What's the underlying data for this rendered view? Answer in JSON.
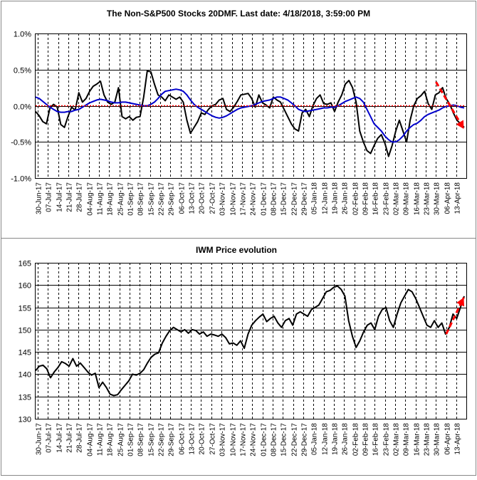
{
  "chart_data": [
    {
      "type": "line",
      "title": "The Non-S&P500 Stocks 20DMF. Last date: 4/18/2018, 3:59:00 PM",
      "xlabel": "",
      "ylabel": "",
      "ylim": [
        -1.0,
        1.0
      ],
      "y_ticks": [
        "1.0%",
        "0.5%",
        "0.0%",
        "-0.5%",
        "-1.0%"
      ],
      "y_tick_values": [
        1.0,
        0.5,
        0.0,
        -0.5,
        -1.0
      ],
      "grid": true,
      "x_tick_labels": [
        "30-Jun-17",
        "07-Jul-17",
        "14-Jul-17",
        "21-Jul-17",
        "28-Jul-17",
        "04-Aug-17",
        "11-Aug-17",
        "18-Aug-17",
        "25-Aug-17",
        "01-Sep-17",
        "08-Sep-17",
        "15-Sep-17",
        "22-Sep-17",
        "29-Sep-17",
        "06-Oct-17",
        "13-Oct-17",
        "20-Oct-17",
        "27-Oct-17",
        "03-Nov-17",
        "10-Nov-17",
        "17-Nov-17",
        "24-Nov-17",
        "01-Dec-17",
        "08-Dec-17",
        "15-Dec-17",
        "22-Dec-17",
        "29-Dec-17",
        "05-Jan-18",
        "12-Jan-18",
        "19-Jan-18",
        "26-Jan-18",
        "02-Feb-18",
        "09-Feb-18",
        "16-Feb-18",
        "23-Feb-18",
        "02-Mar-18",
        "09-Mar-18",
        "16-Mar-18",
        "23-Mar-18",
        "30-Mar-18",
        "06-Apr-18",
        "13-Apr-18"
      ],
      "series": [
        {
          "color": "#000000",
          "values": [
            -0.08,
            -0.14,
            -0.22,
            -0.25,
            -0.03,
            0.02,
            -0.02,
            -0.26,
            -0.3,
            -0.15,
            -0.02,
            -0.06,
            0.18,
            0.05,
            0.1,
            0.2,
            0.27,
            0.3,
            0.34,
            0.15,
            0.05,
            0.02,
            0.05,
            0.25,
            -0.15,
            -0.18,
            -0.15,
            -0.2,
            -0.16,
            -0.15,
            0.12,
            0.48,
            0.47,
            0.3,
            0.15,
            0.12,
            0.07,
            0.15,
            0.12,
            0.09,
            0.12,
            0.05,
            -0.2,
            -0.38,
            -0.3,
            -0.22,
            -0.1,
            -0.12,
            -0.05,
            0.0,
            0.02,
            0.08,
            0.1,
            -0.05,
            -0.08,
            -0.02,
            0.06,
            0.15,
            0.16,
            0.17,
            0.1,
            -0.02,
            0.15,
            0.04,
            0.01,
            -0.03,
            0.12,
            0.08,
            0.05,
            -0.05,
            -0.15,
            -0.25,
            -0.32,
            -0.35,
            -0.1,
            -0.05,
            -0.15,
            0.0,
            0.1,
            0.15,
            0.03,
            0.02,
            0.04,
            -0.08,
            0.05,
            0.15,
            0.3,
            0.35,
            0.25,
            0.05,
            -0.35,
            -0.5,
            -0.62,
            -0.66,
            -0.55,
            -0.45,
            -0.4,
            -0.52,
            -0.7,
            -0.55,
            -0.35,
            -0.2,
            -0.35,
            -0.5,
            -0.2,
            0.0,
            0.1,
            0.14,
            0.2,
            0.03,
            -0.05,
            0.15,
            0.18,
            0.25,
            0.1,
            0.02,
            -0.1,
            -0.2,
            -0.25,
            -0.3
          ]
        },
        {
          "color": "#0000cc",
          "values": [
            0.12,
            0.1,
            0.06,
            0.02,
            -0.02,
            -0.05,
            -0.08,
            -0.09,
            -0.09,
            -0.08,
            -0.08,
            -0.06,
            -0.05,
            -0.02,
            0.01,
            0.04,
            0.06,
            0.08,
            0.09,
            0.08,
            0.07,
            0.05,
            0.04,
            0.04,
            0.05,
            0.05,
            0.04,
            0.03,
            0.02,
            0.01,
            0.0,
            0.0,
            0.02,
            0.05,
            0.1,
            0.16,
            0.2,
            0.21,
            0.22,
            0.23,
            0.22,
            0.2,
            0.15,
            0.08,
            0.02,
            -0.02,
            -0.05,
            -0.08,
            -0.11,
            -0.14,
            -0.16,
            -0.17,
            -0.16,
            -0.14,
            -0.11,
            -0.08,
            -0.05,
            -0.03,
            -0.02,
            -0.01,
            0.0,
            0.02,
            0.04,
            0.06,
            0.07,
            0.08,
            0.1,
            0.12,
            0.12,
            0.1,
            0.08,
            0.04,
            0.0,
            -0.05,
            -0.07,
            -0.08,
            -0.07,
            -0.06,
            -0.05,
            -0.04,
            -0.03,
            -0.03,
            -0.02,
            -0.02,
            0.0,
            0.03,
            0.06,
            0.08,
            0.1,
            0.12,
            0.1,
            0.05,
            -0.05,
            -0.15,
            -0.25,
            -0.3,
            -0.35,
            -0.42,
            -0.47,
            -0.5,
            -0.5,
            -0.47,
            -0.42,
            -0.35,
            -0.3,
            -0.26,
            -0.24,
            -0.2,
            -0.15,
            -0.12,
            -0.1,
            -0.08,
            -0.06,
            -0.03,
            -0.01,
            0.0,
            0.01,
            0.0,
            -0.02,
            -0.03
          ]
        },
        {
          "color": "#ff0000",
          "values": [
            0.0,
            0.0
          ]
        }
      ],
      "annotations": [
        {
          "type": "dashed-arrow",
          "color": "#ff0000",
          "from": {
            "x": "30-Mar-18",
            "y": 0.33
          },
          "to": {
            "x": "18-Apr-18",
            "y": -0.32
          }
        }
      ]
    },
    {
      "type": "line",
      "title": "IWM Price evolution",
      "xlabel": "",
      "ylabel": "",
      "ylim": [
        130,
        165
      ],
      "y_ticks": [
        "165",
        "160",
        "155",
        "150",
        "145",
        "140",
        "135",
        "130"
      ],
      "y_tick_values": [
        165,
        160,
        155,
        150,
        145,
        140,
        135,
        130
      ],
      "grid": true,
      "x_tick_labels": [
        "30-Jun-17",
        "07-Jul-17",
        "14-Jul-17",
        "21-Jul-17",
        "28-Jul-17",
        "04-Aug-17",
        "11-Aug-17",
        "18-Aug-17",
        "25-Aug-17",
        "01-Sep-17",
        "08-Sep-17",
        "15-Sep-17",
        "22-Sep-17",
        "29-Sep-17",
        "06-Oct-17",
        "13-Oct-17",
        "20-Oct-17",
        "27-Oct-17",
        "03-Nov-17",
        "10-Nov-17",
        "17-Nov-17",
        "24-Nov-17",
        "01-Dec-17",
        "08-Dec-17",
        "15-Dec-17",
        "22-Dec-17",
        "29-Dec-17",
        "05-Jan-18",
        "12-Jan-18",
        "19-Jan-18",
        "26-Jan-18",
        "02-Feb-18",
        "09-Feb-18",
        "16-Feb-18",
        "23-Feb-18",
        "02-Mar-18",
        "09-Mar-18",
        "16-Mar-18",
        "23-Mar-18",
        "30-Mar-18",
        "06-Apr-18",
        "13-Apr-18"
      ],
      "series": [
        {
          "color": "#000000",
          "values": [
            140.8,
            141.8,
            142.0,
            141.2,
            139.2,
            140.5,
            141.5,
            142.8,
            142.4,
            141.8,
            143.5,
            141.8,
            142.5,
            141.5,
            140.5,
            139.8,
            140.2,
            137.0,
            138.2,
            137.0,
            135.5,
            135.2,
            135.4,
            136.5,
            137.5,
            138.5,
            140.0,
            139.8,
            140.2,
            141.0,
            142.5,
            143.8,
            144.5,
            144.8,
            147.0,
            148.5,
            149.8,
            150.5,
            150.0,
            149.5,
            150.0,
            149.2,
            150.0,
            149.8,
            149.0,
            149.5,
            148.5,
            149.0,
            148.8,
            148.5,
            149.0,
            148.2,
            146.8,
            147.0,
            146.5,
            147.5,
            145.8,
            149.0,
            151.0,
            152.0,
            152.8,
            153.5,
            151.8,
            152.5,
            153.0,
            151.5,
            150.5,
            152.0,
            152.5,
            151.0,
            153.5,
            154.0,
            153.5,
            153.0,
            154.5,
            155.0,
            155.5,
            157.0,
            158.5,
            158.8,
            159.5,
            159.8,
            159.0,
            157.5,
            152.0,
            148.5,
            146.0,
            147.5,
            149.5,
            151.0,
            151.5,
            150.0,
            153.0,
            154.5,
            155.0,
            152.0,
            150.5,
            153.5,
            156.0,
            157.5,
            159.0,
            158.5,
            157.0,
            155.0,
            153.0,
            151.0,
            150.5,
            152.0,
            150.5,
            151.5,
            149.0,
            150.5,
            153.5,
            152.5,
            155.0,
            157.5
          ]
        }
      ],
      "annotations": [
        {
          "type": "dashed-arrow",
          "color": "#ff0000",
          "from": {
            "x": "06-Apr-18",
            "y": 149.0
          },
          "to": {
            "x": "18-Apr-18",
            "y": 157.2
          }
        }
      ]
    }
  ]
}
